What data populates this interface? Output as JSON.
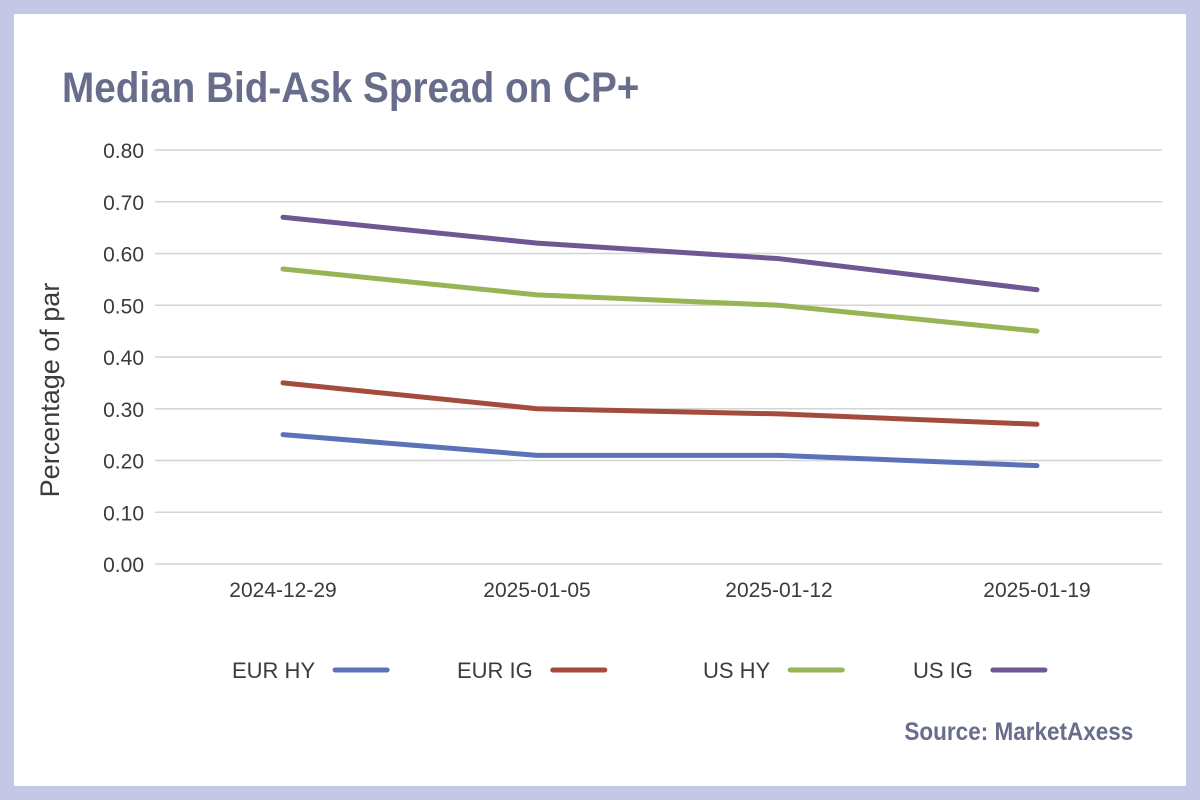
{
  "chart_data": {
    "type": "line",
    "title": "Median Bid-Ask Spread on CP+",
    "xlabel": "",
    "ylabel": "Percentage of par",
    "categories": [
      "2024-12-29",
      "2025-01-05",
      "2025-01-12",
      "2025-01-19"
    ],
    "ylim": [
      0,
      0.8
    ],
    "yticks": [
      "0.00",
      "0.10",
      "0.20",
      "0.30",
      "0.40",
      "0.50",
      "0.60",
      "0.70",
      "0.80"
    ],
    "grid": true,
    "legend_position": "bottom",
    "series": [
      {
        "name": "EUR HY",
        "color": "#5b72b8",
        "values": [
          0.25,
          0.21,
          0.21,
          0.19
        ]
      },
      {
        "name": "EUR IG",
        "color": "#a34c3e",
        "values": [
          0.35,
          0.3,
          0.29,
          0.27
        ]
      },
      {
        "name": "US HY",
        "color": "#97b555",
        "values": [
          0.57,
          0.52,
          0.5,
          0.45
        ]
      },
      {
        "name": "US IG",
        "color": "#6e5793",
        "values": [
          0.67,
          0.62,
          0.59,
          0.53
        ]
      }
    ]
  },
  "source": "Source: MarketAxess"
}
